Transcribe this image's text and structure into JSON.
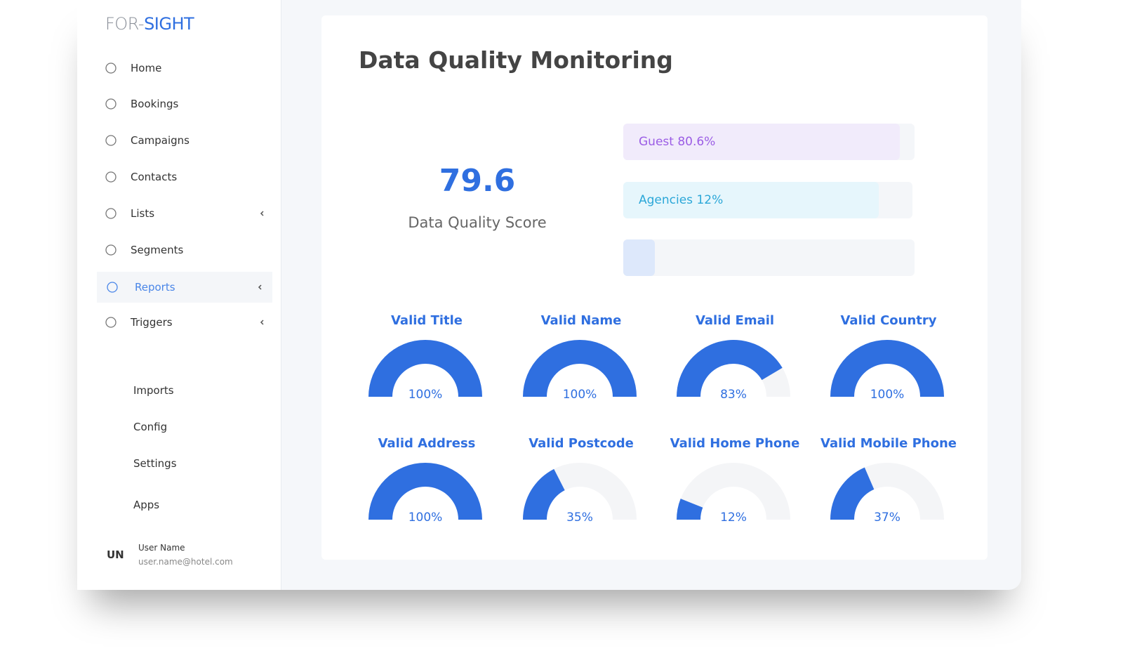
{
  "sidebar": {
    "logo": {
      "prefix": "FOR-",
      "brand": "SIGHT"
    },
    "nav": [
      {
        "label": "Home"
      },
      {
        "label": "Bookings"
      },
      {
        "label": "Campaigns"
      },
      {
        "label": "Contacts"
      },
      {
        "label": "Lists",
        "submenu": true
      },
      {
        "label": "Segments"
      },
      {
        "label": "Reports",
        "submenu": true,
        "active": true
      },
      {
        "label": "Triggers",
        "submenu": true
      }
    ],
    "secondary_nav": [
      {
        "label": "Imports"
      },
      {
        "label": "Config"
      },
      {
        "label": "Settings"
      },
      {
        "label": "Apps"
      }
    ],
    "user": {
      "initials": "UN",
      "name": "User Name",
      "email": "user.name@hotel.com"
    }
  },
  "main": {
    "title": "Data Quality Monitoring",
    "score": {
      "value": "79.6",
      "label": "Data Quality Score"
    },
    "bars": [
      {
        "label": "Guest 80.6%"
      },
      {
        "label": "Agencies 12%"
      }
    ],
    "gauges": [
      {
        "title": "Valid Title",
        "value": 100,
        "value_label": "100%"
      },
      {
        "title": "Valid Name",
        "value": 100,
        "value_label": "100%"
      },
      {
        "title": "Valid Email",
        "value": 83,
        "value_label": "83%"
      },
      {
        "title": "Valid Country",
        "value": 100,
        "value_label": "100%"
      },
      {
        "title": "Valid Address",
        "value": 100,
        "value_label": "100%"
      },
      {
        "title": "Valid Postcode",
        "value": 35,
        "value_label": "35%"
      },
      {
        "title": "Valid Home Phone",
        "value": 12,
        "value_label": "12%"
      },
      {
        "title": "Valid Mobile Phone",
        "value": 37,
        "value_label": "37%"
      }
    ]
  }
}
